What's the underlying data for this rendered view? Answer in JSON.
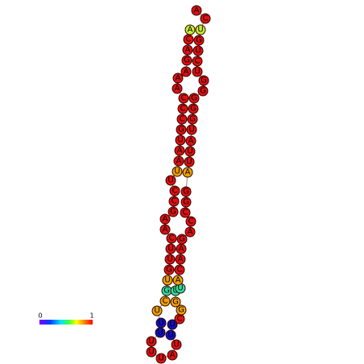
{
  "nodes": [
    {
      "label": "A",
      "color": "#c8f032"
    },
    {
      "label": "C",
      "color": "#e01010"
    },
    {
      "label": "A",
      "color": "#e01010"
    },
    {
      "label": "G",
      "color": "#e01010"
    },
    {
      "label": "A",
      "color": "#e01010"
    },
    {
      "label": "A",
      "color": "#e01010"
    },
    {
      "label": "A",
      "color": "#e01010"
    },
    {
      "label": "C",
      "color": "#e01010"
    },
    {
      "label": "C",
      "color": "#e01010"
    },
    {
      "label": "C",
      "color": "#e01010"
    },
    {
      "label": "G",
      "color": "#e01010"
    },
    {
      "label": "U",
      "color": "#e01010"
    },
    {
      "label": "A",
      "color": "#e01010"
    },
    {
      "label": "A",
      "color": "#e01010"
    },
    {
      "label": "U",
      "color": "#f0a000"
    },
    {
      "label": "U",
      "color": "#e01010"
    },
    {
      "label": "C",
      "color": "#e01010"
    },
    {
      "label": "C",
      "color": "#e01010"
    },
    {
      "label": "G",
      "color": "#e01010"
    },
    {
      "label": "A",
      "color": "#e01010"
    },
    {
      "label": "A",
      "color": "#e01010"
    },
    {
      "label": "C",
      "color": "#e01010"
    },
    {
      "label": "U",
      "color": "#e01010"
    },
    {
      "label": "U",
      "color": "#e01010"
    },
    {
      "label": "G",
      "color": "#e01010"
    },
    {
      "label": "U",
      "color": "#f0a000"
    },
    {
      "label": "G",
      "color": "#30e0a0"
    },
    {
      "label": "C",
      "color": "#f0a000"
    },
    {
      "label": "U",
      "color": "#f0a000"
    },
    {
      "label": "U",
      "color": "#1010c0"
    },
    {
      "label": "U",
      "color": "#1010c0"
    },
    {
      "label": "U",
      "color": "#e01010"
    },
    {
      "label": "U",
      "color": "#e01010"
    },
    {
      "label": "U",
      "color": "#e01010"
    },
    {
      "label": "A",
      "color": "#e01010"
    },
    {
      "label": "U",
      "color": "#e01010"
    },
    {
      "label": "U",
      "color": "#1010c0"
    },
    {
      "label": "U",
      "color": "#1010c0"
    },
    {
      "label": "C",
      "color": "#e01010"
    },
    {
      "label": "G",
      "color": "#f0a000"
    },
    {
      "label": "G",
      "color": "#f0a000"
    },
    {
      "label": "U",
      "color": "#30e0a0"
    },
    {
      "label": "U",
      "color": "#30e0a0"
    },
    {
      "label": "A",
      "color": "#f0a000"
    },
    {
      "label": "C",
      "color": "#e01010"
    },
    {
      "label": "A",
      "color": "#e01010"
    },
    {
      "label": "A",
      "color": "#e01010"
    },
    {
      "label": "G",
      "color": "#e01010"
    },
    {
      "label": "A",
      "color": "#e01010"
    },
    {
      "label": "C",
      "color": "#e01010"
    },
    {
      "label": "C",
      "color": "#e01010"
    },
    {
      "label": "G",
      "color": "#e01010"
    },
    {
      "label": "G",
      "color": "#e01010"
    },
    {
      "label": "A",
      "color": "#f0a000"
    },
    {
      "label": "U",
      "color": "#e01010"
    },
    {
      "label": "U",
      "color": "#e01010"
    },
    {
      "label": "A",
      "color": "#e01010"
    },
    {
      "label": "U",
      "color": "#e01010"
    },
    {
      "label": "G",
      "color": "#e01010"
    },
    {
      "label": "G",
      "color": "#e01010"
    },
    {
      "label": "G",
      "color": "#e01010"
    },
    {
      "label": "G",
      "color": "#e01010"
    },
    {
      "label": "G",
      "color": "#e01010"
    },
    {
      "label": "U",
      "color": "#e01010"
    },
    {
      "label": "C",
      "color": "#e01010"
    },
    {
      "label": "U",
      "color": "#e01010"
    },
    {
      "label": "G",
      "color": "#e01010"
    },
    {
      "label": "U",
      "color": "#c8f032"
    },
    {
      "label": "C",
      "color": "#e01010"
    },
    {
      "label": "A",
      "color": "#e01010"
    }
  ],
  "legend": {
    "min": "0",
    "max": "1"
  }
}
